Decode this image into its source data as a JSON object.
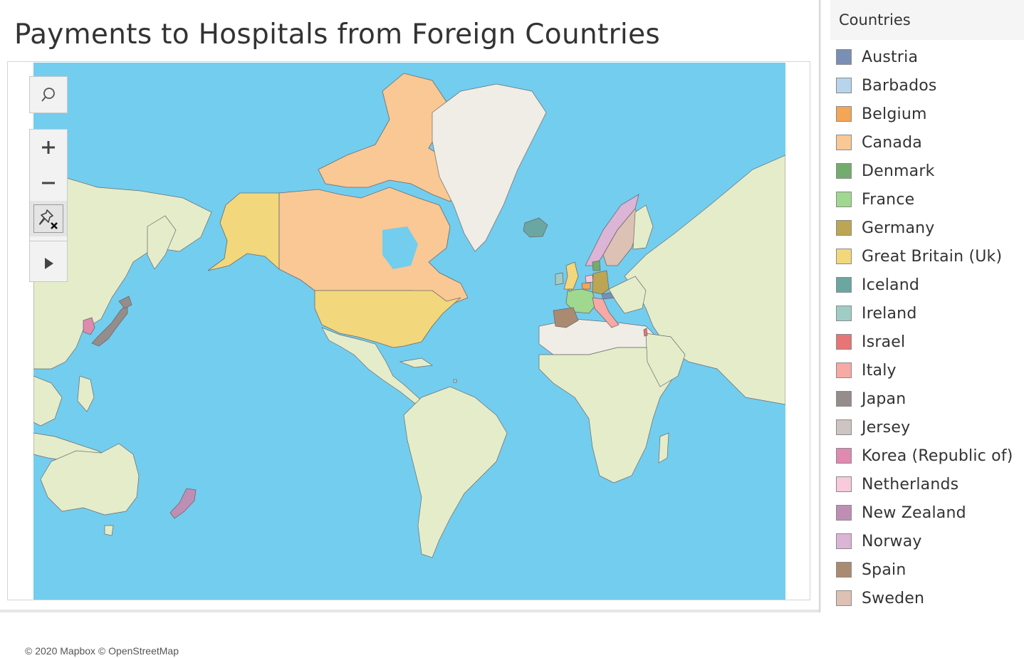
{
  "title": "Payments to Hospitals from Foreign Countries",
  "map": {
    "colors": {
      "ocean": "#73cdee",
      "land": "#e4ecca",
      "ice": "#f0ece6",
      "border": "#6b6b6b"
    },
    "controls": [
      {
        "name": "search-button",
        "icon": "search-icon"
      },
      {
        "name": "zoom-in-button",
        "icon": "plus-icon"
      },
      {
        "name": "zoom-out-button",
        "icon": "minus-icon"
      },
      {
        "name": "reset-map-button",
        "icon": "unpin-icon"
      },
      {
        "name": "expand-toolbar-button",
        "icon": "play-icon"
      }
    ],
    "attribution": "© 2020 Mapbox © OpenStreetMap"
  },
  "legend": {
    "title": "Countries",
    "items": [
      {
        "label": "Austria",
        "color": "#7a8fb5"
      },
      {
        "label": "Barbados",
        "color": "#b7d4ec"
      },
      {
        "label": "Belgium",
        "color": "#f5a556"
      },
      {
        "label": "Canada",
        "color": "#f9c894"
      },
      {
        "label": "Denmark",
        "color": "#74ac6d"
      },
      {
        "label": "France",
        "color": "#9fd88e"
      },
      {
        "label": "Germany",
        "color": "#bca654"
      },
      {
        "label": "Great Britain (Uk)",
        "color": "#f2d77c"
      },
      {
        "label": "Iceland",
        "color": "#6aa7a2"
      },
      {
        "label": "Ireland",
        "color": "#a0ccc6"
      },
      {
        "label": "Israel",
        "color": "#e77575"
      },
      {
        "label": "Italy",
        "color": "#f7a9a5"
      },
      {
        "label": "Japan",
        "color": "#958d8b"
      },
      {
        "label": "Jersey",
        "color": "#cdc5c2"
      },
      {
        "label": "Korea (Republic of)",
        "color": "#e08ab0"
      },
      {
        "label": "Netherlands",
        "color": "#f8cadb"
      },
      {
        "label": "New Zealand",
        "color": "#bf8eb4"
      },
      {
        "label": "Norway",
        "color": "#dcb4d6"
      },
      {
        "label": "Spain",
        "color": "#ab8a72"
      },
      {
        "label": "Sweden",
        "color": "#dcc1b4"
      }
    ]
  }
}
